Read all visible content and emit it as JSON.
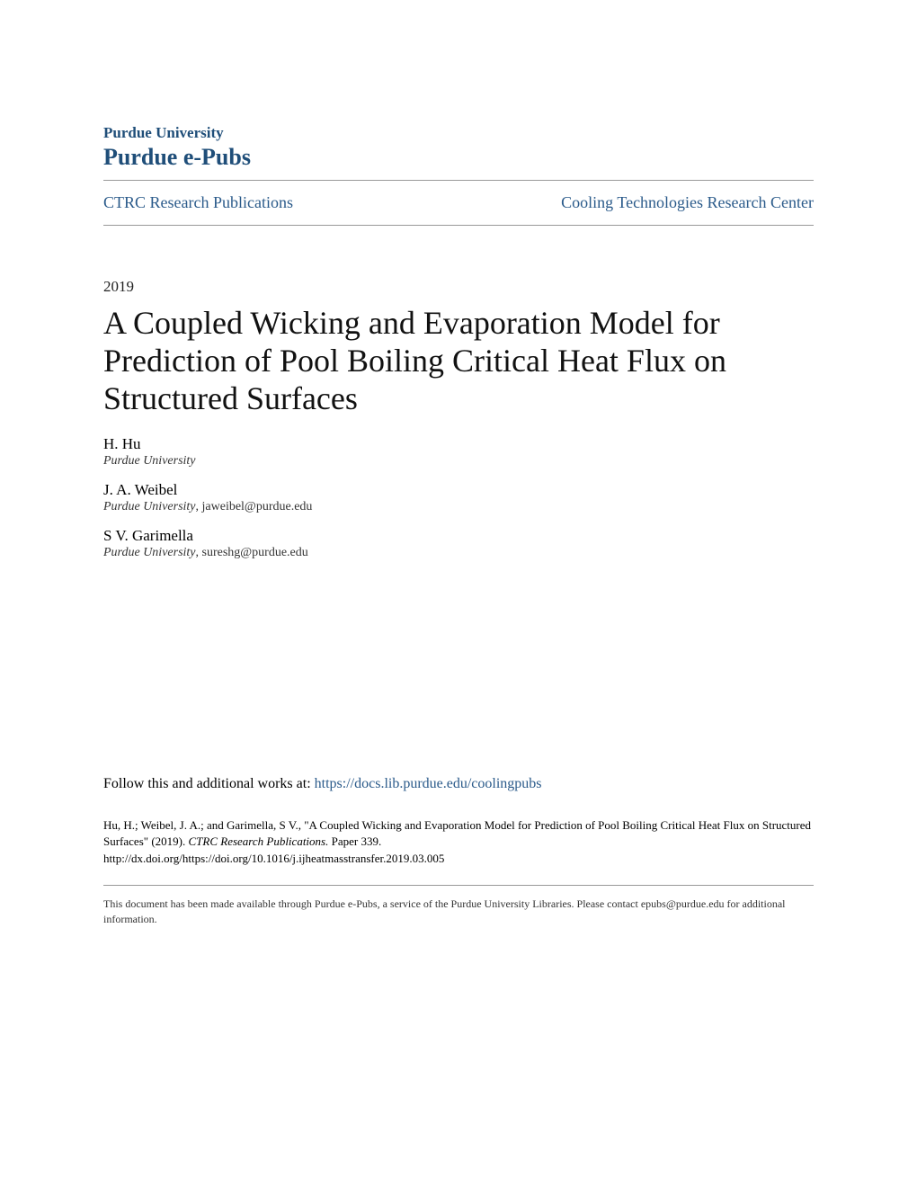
{
  "header": {
    "university": "Purdue University",
    "repository": "Purdue e-Pubs",
    "nav_left": "CTRC Research Publications",
    "nav_right": "Cooling Technologies Research Center"
  },
  "meta": {
    "year": "2019",
    "title": "A Coupled Wicking and Evaporation Model for Prediction of Pool Boiling Critical Heat Flux on Structured Surfaces"
  },
  "authors": [
    {
      "name": "H. Hu",
      "affiliation": "Purdue University",
      "email": ""
    },
    {
      "name": "J. A. Weibel",
      "affiliation": "Purdue University",
      "email": ", jaweibel@purdue.edu"
    },
    {
      "name": "S V. Garimella",
      "affiliation": "Purdue University",
      "email": ", sureshg@purdue.edu"
    }
  ],
  "follow": {
    "prefix": "Follow this and additional works at: ",
    "link": "https://docs.lib.purdue.edu/coolingpubs"
  },
  "citation": {
    "text_prefix": "Hu, H.; Weibel, J. A.; and Garimella, S V., \"A Coupled Wicking and Evaporation Model for Prediction of Pool Boiling Critical Heat Flux on Structured Surfaces\" (2019). ",
    "series": "CTRC Research Publications.",
    "suffix": " Paper 339.",
    "doi": "http://dx.doi.org/https://doi.org/10.1016/j.ijheatmasstransfer.2019.03.005"
  },
  "footer": {
    "note": "This document has been made available through Purdue e-Pubs, a service of the Purdue University Libraries. Please contact epubs@purdue.edu for additional information."
  },
  "colors": {
    "brand": "#1f4e79",
    "link": "#2a5a8a",
    "text": "#000000",
    "divider": "#999999",
    "background": "#ffffff"
  },
  "typography": {
    "title_fontsize": 36,
    "repo_fontsize": 26,
    "nav_fontsize": 18,
    "body_fontsize": 17,
    "citation_fontsize": 13,
    "footer_fontsize": 12,
    "font_family": "Georgia serif"
  }
}
